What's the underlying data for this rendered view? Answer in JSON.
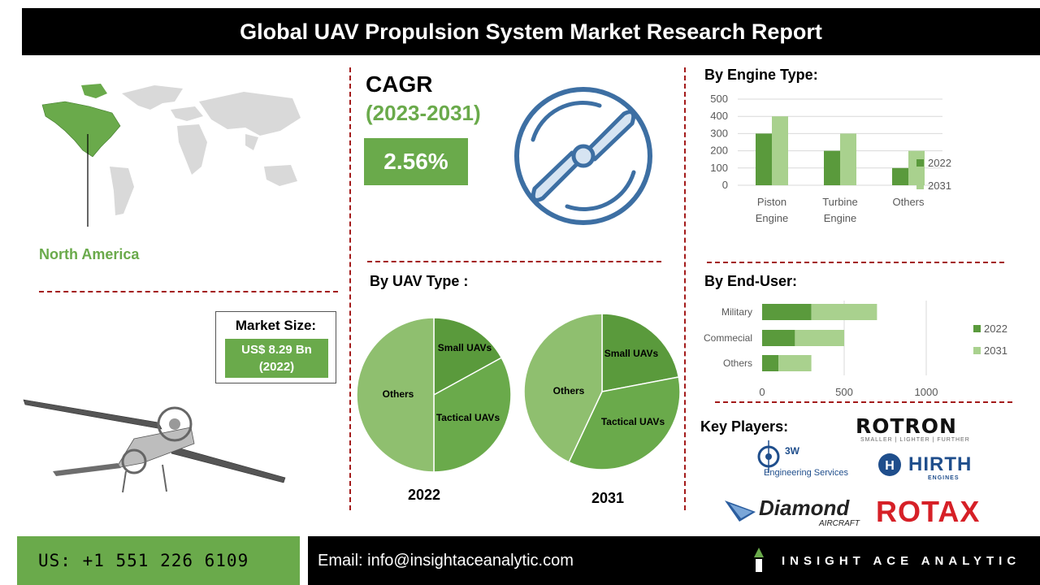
{
  "header": {
    "title": "Global UAV Propulsion System Market Research Report"
  },
  "region": {
    "label": "North America",
    "highlight_color": "#6aaa4b"
  },
  "market_size": {
    "title": "Market Size:",
    "value_line1": "US$ 8.29 Bn",
    "value_line2": "(2022)"
  },
  "cagr": {
    "title": "CAGR",
    "years": "(2023-2031)",
    "value": "2.56%"
  },
  "sections": {
    "engine_type": "By Engine Type:",
    "uav_type": "By UAV Type :",
    "end_user": "By End-User:",
    "key_players": "Key Players:"
  },
  "pie_years": {
    "left": "2022",
    "right": "2031"
  },
  "key_players": {
    "rotron": "ROTRON",
    "rotron_tagline": "SMALLER  |  LIGHTER  |  FURTHER",
    "threew": "3W",
    "threew_sub": "Engineering Services",
    "hirth": "HIRTH",
    "hirth_sub": "ENGINES",
    "diamond": "Diamond",
    "diamond_sub": "AIRCRAFT",
    "rotax": "ROTAX"
  },
  "footer": {
    "phone": "US: +1 551 226 6109",
    "email": "Email: info@insightaceanalytic.com",
    "brand": "INSIGHT ACE ANALYTIC"
  },
  "colors": {
    "dark_green": "#5a9a3c",
    "light_green": "#a9d18e",
    "accent_green": "#6aaa4b",
    "divider_red": "#a31a1a"
  },
  "chart_data": [
    {
      "type": "bar",
      "categories": [
        "Piston Engine",
        "Turbine Engine",
        "Others"
      ],
      "series": [
        {
          "name": "2022",
          "values": [
            300,
            200,
            100
          ]
        },
        {
          "name": "2031",
          "values": [
            400,
            300,
            200
          ]
        }
      ],
      "ylim": [
        0,
        500
      ],
      "yticks": [
        "0",
        "100",
        "200",
        "300",
        "400",
        "500"
      ],
      "legend": "right"
    },
    {
      "type": "bar",
      "orientation": "horizontal",
      "stacked": true,
      "categories": [
        "Military",
        "Commecial",
        "Others"
      ],
      "series": [
        {
          "name": "2022",
          "values": [
            300,
            200,
            100
          ]
        },
        {
          "name": "2031",
          "values": [
            400,
            300,
            200
          ]
        }
      ],
      "xlim": [
        0,
        1000
      ],
      "xticks": [
        "0",
        "500",
        "1000"
      ],
      "legend": "right"
    },
    {
      "type": "pie",
      "year": "2022",
      "slices": [
        {
          "label": "Small UAVs",
          "value": 17
        },
        {
          "label": "Tactical UAVs",
          "value": 33
        },
        {
          "label": "Others",
          "value": 50
        }
      ]
    },
    {
      "type": "pie",
      "year": "2031",
      "slices": [
        {
          "label": "Small UAVs",
          "value": 22
        },
        {
          "label": "Tactical UAVs",
          "value": 35
        },
        {
          "label": "Others",
          "value": 43
        }
      ]
    }
  ]
}
